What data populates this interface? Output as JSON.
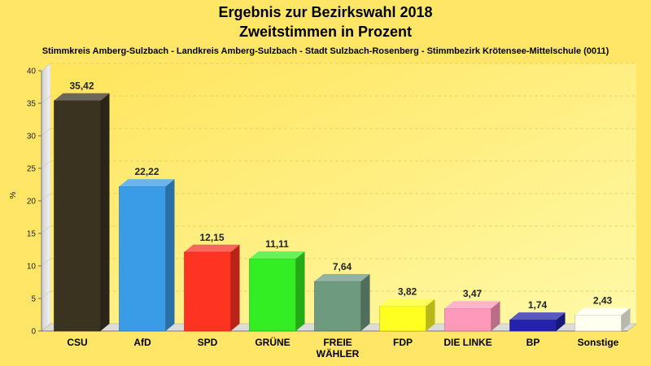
{
  "header": {
    "title_line1": "Ergebnis zur Bezirkswahl 2018",
    "title_line2": "Zweitstimmen in Prozent",
    "subtitle": "Stimmkreis Amberg-Sulzbach - Landkreis Amberg-Sulzbach - Stadt Sulzbach-Rosenberg - Stimmbezirk Krötensee-Mittelschule (0011)"
  },
  "colors": {
    "background": "#ffe666",
    "plot_area": "#fff07a"
  },
  "chart_data": {
    "type": "bar",
    "title": "Ergebnis zur Bezirkswahl 2018",
    "subtitle": "Zweitstimmen in Prozent",
    "ylabel": "%",
    "xlabel": "",
    "ylim": [
      0,
      40
    ],
    "yticks": [
      "0",
      "5",
      "10",
      "15",
      "20",
      "25",
      "30",
      "35",
      "40"
    ],
    "grid": true,
    "categories": [
      "CSU",
      "AfD",
      "SPD",
      "GRÜNE",
      "FREIE WÄHLER",
      "FDP",
      "DIE LINKE",
      "BP",
      "Sonstige"
    ],
    "category_lines": [
      [
        "CSU"
      ],
      [
        "AfD"
      ],
      [
        "SPD"
      ],
      [
        "GRÜNE"
      ],
      [
        "FREIE",
        "WÄHLER"
      ],
      [
        "FDP"
      ],
      [
        "DIE LINKE"
      ],
      [
        "BP"
      ],
      [
        "Sonstige"
      ]
    ],
    "values": [
      35.42,
      22.22,
      12.15,
      11.11,
      7.64,
      3.82,
      3.47,
      1.74,
      2.43
    ],
    "value_labels": [
      "35,42",
      "22,22",
      "12,15",
      "11,11",
      "7,64",
      "3,82",
      "3,47",
      "1,74",
      "2,43"
    ],
    "bar_colors": [
      "#3a3320",
      "#3a9be6",
      "#ff3322",
      "#33ee22",
      "#6e9a80",
      "#ffff22",
      "#ff99bb",
      "#2222aa",
      "#fffff0"
    ]
  }
}
